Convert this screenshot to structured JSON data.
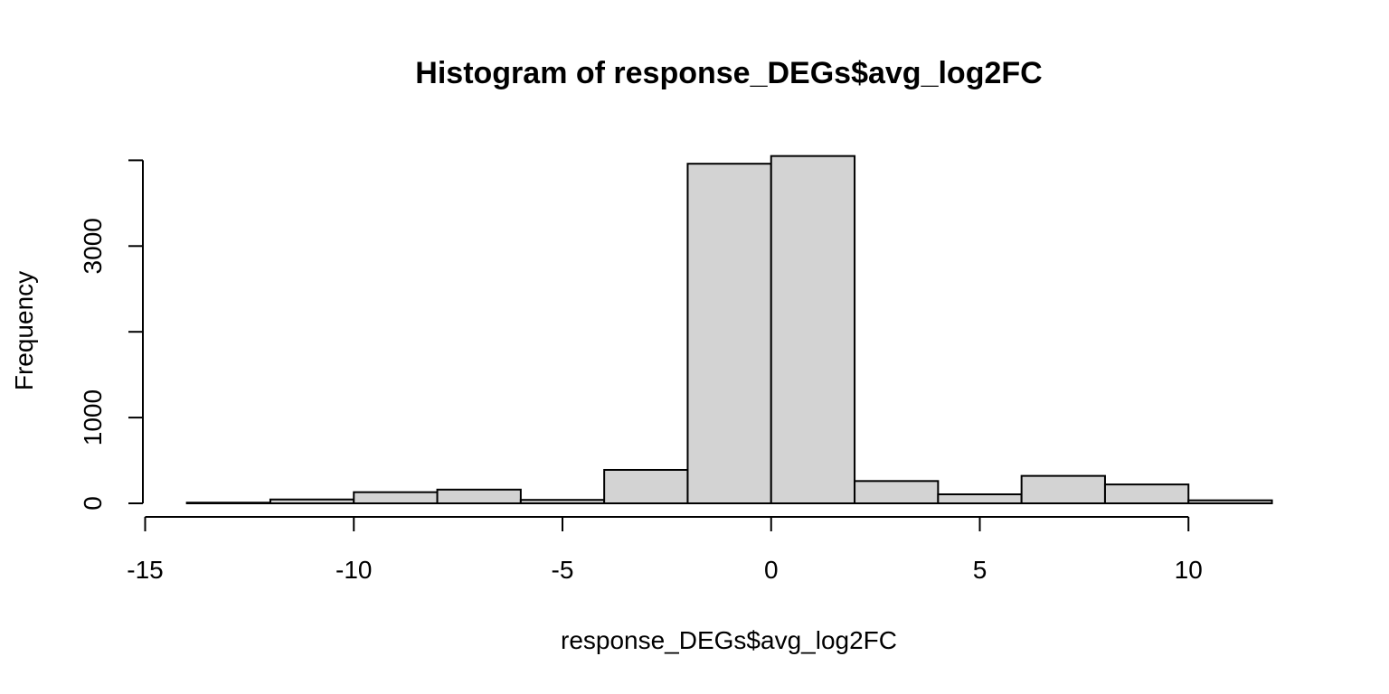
{
  "chart_data": {
    "type": "bar",
    "title": "Histogram of response_DEGs$avg_log2FC",
    "xlabel": "response_DEGs$avg_log2FC",
    "ylabel": "Frequency",
    "bins": [
      {
        "start": -14,
        "end": -12,
        "count": 8
      },
      {
        "start": -12,
        "end": -10,
        "count": 45
      },
      {
        "start": -10,
        "end": -8,
        "count": 130
      },
      {
        "start": -8,
        "end": -6,
        "count": 160
      },
      {
        "start": -6,
        "end": -4,
        "count": 40
      },
      {
        "start": -4,
        "end": -2,
        "count": 390
      },
      {
        "start": -2,
        "end": 0,
        "count": 3960
      },
      {
        "start": 0,
        "end": 2,
        "count": 4050
      },
      {
        "start": 2,
        "end": 4,
        "count": 260
      },
      {
        "start": 4,
        "end": 6,
        "count": 105
      },
      {
        "start": 6,
        "end": 8,
        "count": 320
      },
      {
        "start": 8,
        "end": 10,
        "count": 220
      },
      {
        "start": 10,
        "end": 12,
        "count": 35
      }
    ],
    "x_ticks": [
      -15,
      -10,
      -5,
      0,
      5,
      10
    ],
    "x_tick_labels": [
      "-15",
      "-10",
      "-5",
      "0",
      "5",
      "10"
    ],
    "y_ticks": [
      0,
      1000,
      2000,
      3000,
      4000
    ],
    "y_tick_labels": [
      "0",
      "1000",
      "",
      "3000",
      ""
    ],
    "xlim": [
      -15,
      12
    ],
    "ylim": [
      0,
      4000
    ],
    "bar_fill": "#d3d3d3",
    "bar_stroke": "#000000",
    "grid": false
  }
}
